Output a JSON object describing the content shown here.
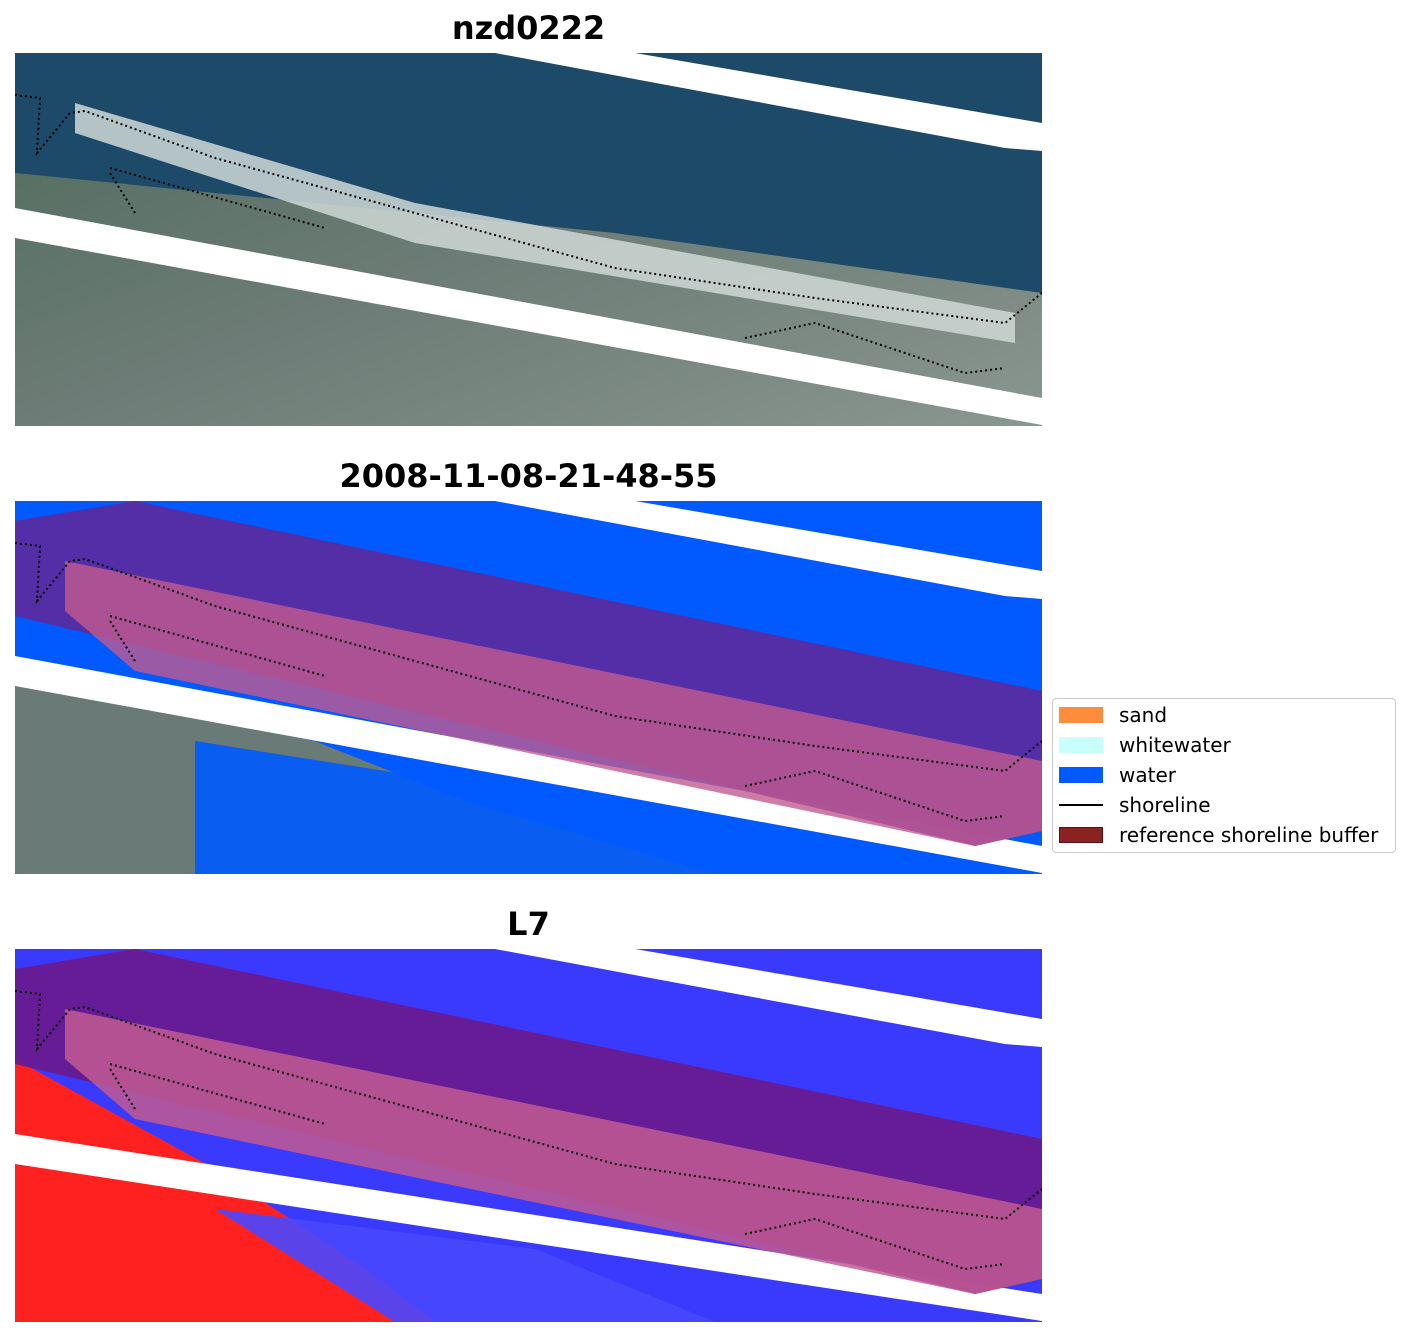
{
  "panels": [
    {
      "title": "nzd0222"
    },
    {
      "title": "2008-11-08-21-48-55"
    },
    {
      "title": "L7"
    }
  ],
  "legend": {
    "items": [
      {
        "label": "sand",
        "color": "#ff8c3c"
      },
      {
        "label": "whitewater",
        "color": "#c8fffa"
      },
      {
        "label": "water",
        "color": "#005aff"
      },
      {
        "label": "shoreline",
        "color": "#000000"
      },
      {
        "label": "reference shoreline buffer",
        "color": "#8b2222"
      }
    ]
  },
  "colors": {
    "ocean": "#1e4a6a",
    "land": "#5a6e64",
    "water_class": "#005aff",
    "buffer": "#5a2a9e",
    "buffer_pink": "#c25a90",
    "index_blue": "#3a3aff",
    "index_red": "#ff2020"
  }
}
